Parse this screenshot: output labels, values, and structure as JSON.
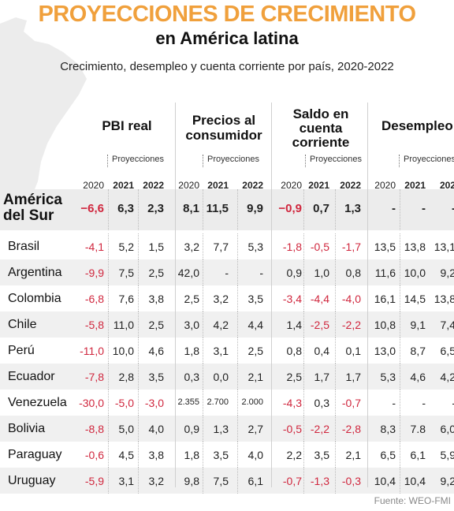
{
  "title_line1": "PROYECCIONES DE CRECIMIENTO",
  "title_line2": "en América latina",
  "subtitle": "Crecimiento, desempleo y cuenta corriente por país, 2020-2022",
  "source": "Fuente: WEO-FMI",
  "colors": {
    "title": "#f0a03c",
    "negative": "#d0273e",
    "shaded_row": "#f0f0f0"
  },
  "chart_data": {
    "type": "table",
    "groups": [
      {
        "label_lines": [
          "PBI real"
        ],
        "proj_label": "Proyecciones",
        "years": [
          "2020",
          "2021",
          "2022"
        ]
      },
      {
        "label_lines": [
          "Precios al",
          "consumidor"
        ],
        "proj_label": "Proyecciones",
        "years": [
          "2020",
          "2021",
          "2022"
        ]
      },
      {
        "label_lines": [
          "Saldo en",
          "cuenta",
          "corriente"
        ],
        "proj_label": "Proyecciones",
        "years": [
          "2020",
          "2021",
          "2022"
        ]
      },
      {
        "label_lines": [
          "Desempleo"
        ],
        "proj_label": "Proyecciones",
        "years": [
          "2020",
          "2021",
          "202"
        ]
      }
    ],
    "rows": [
      {
        "country": "América del Sur",
        "aggregate": true,
        "values": [
          "−6,6",
          "6,3",
          "2,3",
          "8,1",
          "11,5",
          "9,9",
          "−0,9",
          "0,7",
          "1,3",
          "-",
          "-",
          "-"
        ]
      },
      {
        "country": "Brasil",
        "values": [
          "-4,1",
          "5,2",
          "1,5",
          "3,2",
          "7,7",
          "5,3",
          "-1,8",
          "-0,5",
          "-1,7",
          "13,5",
          "13,8",
          "13,1"
        ]
      },
      {
        "country": "Argentina",
        "values": [
          "-9,9",
          "7,5",
          "2,5",
          "42,0",
          "-",
          "-",
          "0,9",
          "1,0",
          "0,8",
          "11,6",
          "10,0",
          "9,2"
        ]
      },
      {
        "country": "Colombia",
        "values": [
          "-6,8",
          "7,6",
          "3,8",
          "2,5",
          "3,2",
          "3,5",
          "-3,4",
          "-4,4",
          "-4,0",
          "16,1",
          "14,5",
          "13,8"
        ]
      },
      {
        "country": "Chile",
        "values": [
          "-5,8",
          "11,0",
          "2,5",
          "3,0",
          "4,2",
          "4,4",
          "1,4",
          "-2,5",
          "-2,2",
          "10,8",
          "9,1",
          "7,4"
        ]
      },
      {
        "country": "Perú",
        "values": [
          "-11,0",
          "10,0",
          "4,6",
          "1,8",
          "3,1",
          "2,5",
          "0,8",
          "0,4",
          "0,1",
          "13,0",
          "8,7",
          "6,5"
        ]
      },
      {
        "country": "Ecuador",
        "values": [
          "-7,8",
          "2,8",
          "3,5",
          "0,3",
          "0,0",
          "2,1",
          "2,5",
          "1,7",
          "1,7",
          "5,3",
          "4,6",
          "4,2"
        ]
      },
      {
        "country": "Venezuela",
        "values": [
          "-30,0",
          "-5,0",
          "-3,0",
          "2.355",
          "2.700",
          "2.000",
          "-4,3",
          "0,3",
          "-0,7",
          "-",
          "-",
          "-"
        ]
      },
      {
        "country": "Bolivia",
        "values": [
          "-8,8",
          "5,0",
          "4,0",
          "0,9",
          "1,3",
          "2,7",
          "-0,5",
          "-2,2",
          "-2,8",
          "8,3",
          "7.8",
          "6,0"
        ]
      },
      {
        "country": "Paraguay",
        "values": [
          "-0,6",
          "4,5",
          "3,8",
          "1,8",
          "3,5",
          "4,0",
          "2,2",
          "3,5",
          "2,1",
          "6,5",
          "6,1",
          "5,9"
        ]
      },
      {
        "country": "Uruguay",
        "values": [
          "-5,9",
          "3,1",
          "3,2",
          "9,8",
          "7,5",
          "6,1",
          "-0,7",
          "-1,3",
          "-0,3",
          "10,4",
          "10,4",
          "9,2"
        ]
      }
    ]
  }
}
